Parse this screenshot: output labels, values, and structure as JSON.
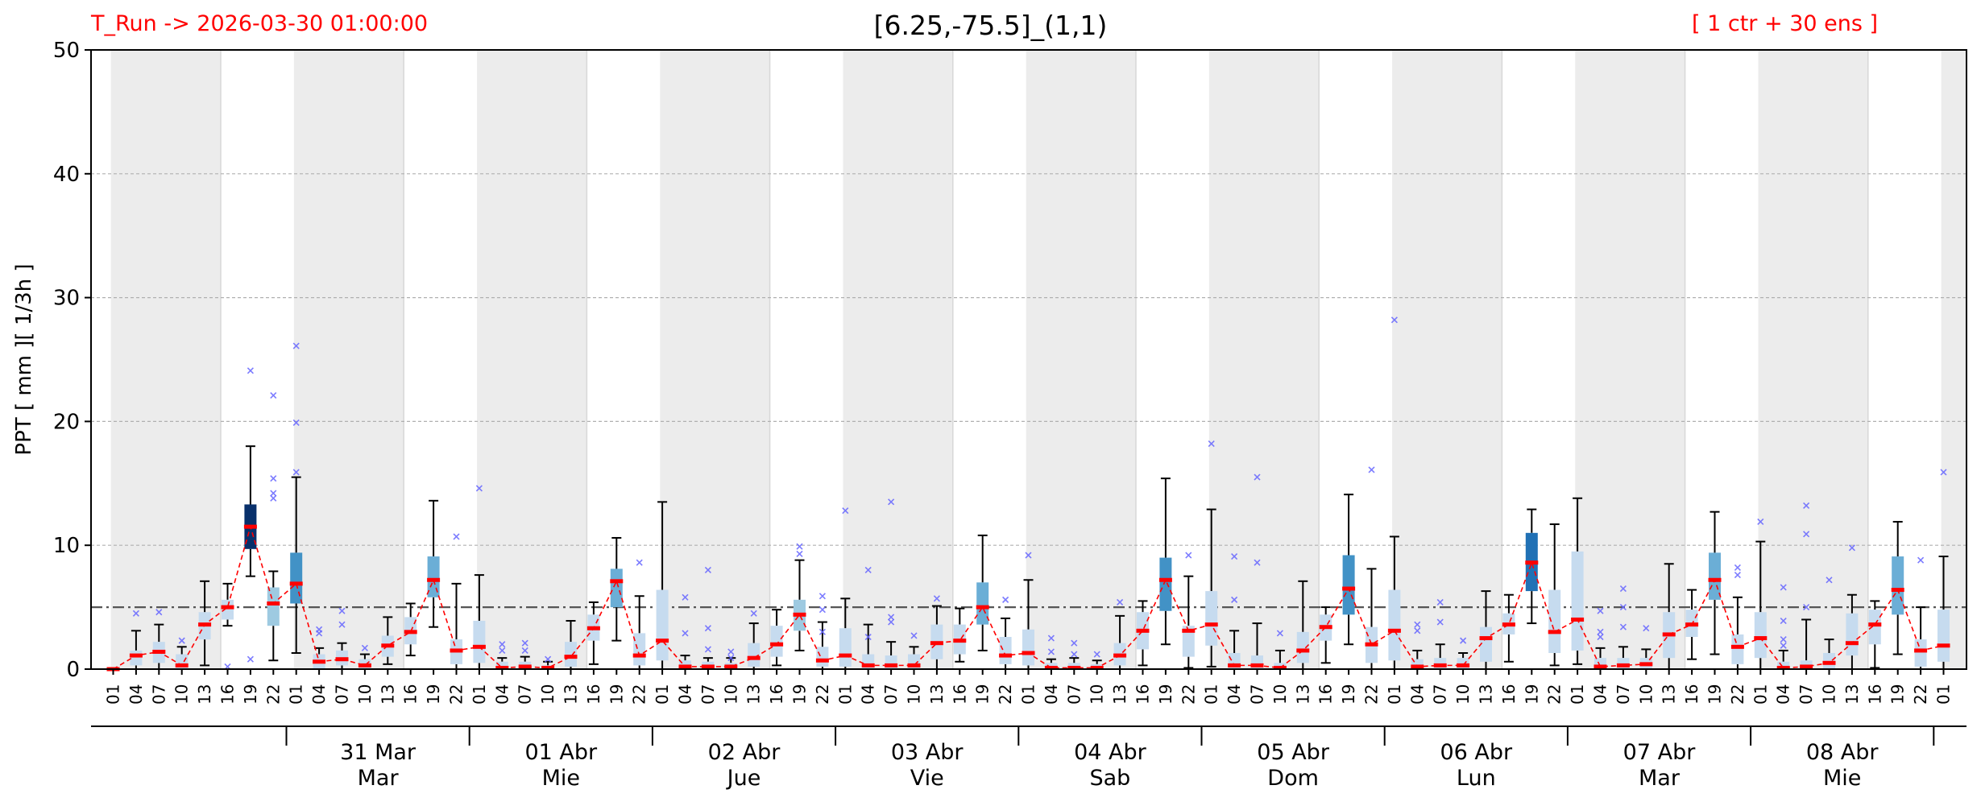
{
  "header": {
    "title": "[6.25,-75.5]_(1,1)",
    "run_label": "T_Run -> 2026-03-30  01:00:00",
    "ensemble_label": "[ 1 ctr + 30 ens ]"
  },
  "colors": {
    "median": "#ff0000",
    "mean_line": "#ff0000",
    "whisker": "#000000",
    "outlier": "#6666ff",
    "threshold_line": "#555555",
    "night_shade": "#ececec",
    "box_levels": [
      "#c6dbef",
      "#9ecae1",
      "#6baed6",
      "#4292c6",
      "#2171b5",
      "#08306b"
    ]
  },
  "chart_data": {
    "type": "box",
    "ylabel": "PPT  [ mm ][ 1/3h ]",
    "ylim": [
      0,
      50
    ],
    "yticks": [
      0,
      10,
      20,
      30,
      40,
      50
    ],
    "threshold": 5,
    "grid": "horizontal-dashed",
    "hour_labels": [
      "01",
      "04",
      "07",
      "10",
      "13",
      "16",
      "19",
      "22"
    ],
    "day_labels": [
      {
        "date": "31 Mar",
        "weekday": "Mar"
      },
      {
        "date": "01 Abr",
        "weekday": "Mie"
      },
      {
        "date": "02 Abr",
        "weekday": "Jue"
      },
      {
        "date": "03 Abr",
        "weekday": "Vie"
      },
      {
        "date": "04 Abr",
        "weekday": "Sab"
      },
      {
        "date": "05 Abr",
        "weekday": "Dom"
      },
      {
        "date": "06 Abr",
        "weekday": "Lun"
      },
      {
        "date": "07 Abr",
        "weekday": "Mar"
      },
      {
        "date": "08 Abr",
        "weekday": "Mie"
      }
    ],
    "boxes": [
      {
        "q1": 0,
        "q3": 0,
        "lo": 0,
        "hi": 0,
        "med": 0,
        "c": 0,
        "o": []
      },
      {
        "q1": 0.3,
        "q3": 1.5,
        "lo": 0,
        "hi": 3.1,
        "med": 1.1,
        "c": 0,
        "o": [
          4.5
        ]
      },
      {
        "q1": 0.5,
        "q3": 2.2,
        "lo": 0,
        "hi": 3.6,
        "med": 1.4,
        "c": 0,
        "o": [
          4.6
        ]
      },
      {
        "q1": 0,
        "q3": 1.2,
        "lo": 0,
        "hi": 1.8,
        "med": 0.3,
        "c": 0,
        "o": [
          2.3
        ]
      },
      {
        "q1": 2.4,
        "q3": 4.6,
        "lo": 0.3,
        "hi": 7.1,
        "med": 3.6,
        "c": 0,
        "o": []
      },
      {
        "q1": 4,
        "q3": 5.6,
        "lo": 3.5,
        "hi": 6.9,
        "med": 5,
        "c": 0,
        "o": [
          0.2
        ]
      },
      {
        "q1": 9.7,
        "q3": 13.3,
        "lo": 7.5,
        "hi": 18,
        "med": 11.5,
        "c": 5,
        "o": [
          24.1,
          0.8
        ]
      },
      {
        "q1": 3.5,
        "q3": 6.6,
        "lo": 0.7,
        "hi": 7.9,
        "med": 5.3,
        "c": 1,
        "o": [
          14.2,
          15.4,
          22.1,
          13.8
        ]
      },
      {
        "q1": 5.3,
        "q3": 9.4,
        "lo": 1.3,
        "hi": 15.5,
        "med": 6.9,
        "c": 3,
        "o": [
          15.9,
          19.9,
          26.1
        ]
      },
      {
        "q1": 0,
        "q3": 1.2,
        "lo": 0,
        "hi": 1.7,
        "med": 0.6,
        "c": 0,
        "o": [
          2.9,
          3.2
        ]
      },
      {
        "q1": 0.3,
        "q3": 1.5,
        "lo": 0,
        "hi": 2.1,
        "med": 0.8,
        "c": 0,
        "o": [
          3.6,
          4.7
        ]
      },
      {
        "q1": 0,
        "q3": 0.8,
        "lo": 0,
        "hi": 1.2,
        "med": 0.3,
        "c": 0,
        "o": [
          1.7
        ]
      },
      {
        "q1": 1,
        "q3": 2.7,
        "lo": 0.4,
        "hi": 4.2,
        "med": 1.9,
        "c": 0,
        "o": []
      },
      {
        "q1": 2,
        "q3": 4.2,
        "lo": 1.1,
        "hi": 5.3,
        "med": 3,
        "c": 0,
        "o": []
      },
      {
        "q1": 5.8,
        "q3": 9.1,
        "lo": 3.4,
        "hi": 13.6,
        "med": 7.2,
        "c": 2,
        "o": []
      },
      {
        "q1": 0.4,
        "q3": 2.4,
        "lo": 0,
        "hi": 6.9,
        "med": 1.5,
        "c": 0,
        "o": [
          10.7
        ]
      },
      {
        "q1": 0.5,
        "q3": 3.9,
        "lo": 0,
        "hi": 7.6,
        "med": 1.8,
        "c": 0,
        "o": [
          14.6
        ]
      },
      {
        "q1": 0,
        "q3": 0.6,
        "lo": 0,
        "hi": 0.9,
        "med": 0.1,
        "c": 0,
        "o": [
          1.5,
          2
        ]
      },
      {
        "q1": 0,
        "q3": 0.6,
        "lo": 0,
        "hi": 1,
        "med": 0.2,
        "c": 0,
        "o": [
          1.5,
          2.1
        ]
      },
      {
        "q1": 0,
        "q3": 0.3,
        "lo": 0,
        "hi": 0.6,
        "med": 0.1,
        "c": 0,
        "o": [
          0.8
        ]
      },
      {
        "q1": 0.2,
        "q3": 2.2,
        "lo": 0,
        "hi": 3.9,
        "med": 1,
        "c": 0,
        "o": []
      },
      {
        "q1": 2.3,
        "q3": 4.4,
        "lo": 0.4,
        "hi": 5.4,
        "med": 3.3,
        "c": 0,
        "o": []
      },
      {
        "q1": 5,
        "q3": 8.1,
        "lo": 2.3,
        "hi": 10.6,
        "med": 7.1,
        "c": 2,
        "o": []
      },
      {
        "q1": 0.3,
        "q3": 2.9,
        "lo": 0,
        "hi": 5.9,
        "med": 1.1,
        "c": 0,
        "o": [
          8.6
        ]
      },
      {
        "q1": 0.7,
        "q3": 6.4,
        "lo": 0,
        "hi": 13.5,
        "med": 2.3,
        "c": 0,
        "o": []
      },
      {
        "q1": 0,
        "q3": 0.7,
        "lo": 0,
        "hi": 1.1,
        "med": 0.2,
        "c": 0,
        "o": [
          2.9,
          5.8
        ]
      },
      {
        "q1": 0,
        "q3": 0.6,
        "lo": 0,
        "hi": 0.9,
        "med": 0.2,
        "c": 0,
        "o": [
          1.6,
          3.3,
          8
        ]
      },
      {
        "q1": 0,
        "q3": 0.5,
        "lo": 0,
        "hi": 0.9,
        "med": 0.2,
        "c": 0,
        "o": [
          0.9,
          1.4
        ]
      },
      {
        "q1": 0.2,
        "q3": 2.1,
        "lo": 0,
        "hi": 3.7,
        "med": 0.9,
        "c": 0,
        "o": [
          4.5
        ]
      },
      {
        "q1": 1,
        "q3": 3.5,
        "lo": 0.3,
        "hi": 4.8,
        "med": 2,
        "c": 0,
        "o": []
      },
      {
        "q1": 3.1,
        "q3": 5.6,
        "lo": 1.5,
        "hi": 8.8,
        "med": 4.4,
        "c": 1,
        "o": [
          9.3,
          9.9
        ]
      },
      {
        "q1": 0.2,
        "q3": 1.8,
        "lo": 0,
        "hi": 3.8,
        "med": 0.7,
        "c": 0,
        "o": [
          4.8,
          5.9,
          3
        ]
      },
      {
        "q1": 0.2,
        "q3": 3.3,
        "lo": 0,
        "hi": 5.7,
        "med": 1.1,
        "c": 0,
        "o": [
          12.8
        ]
      },
      {
        "q1": 0,
        "q3": 1.2,
        "lo": 0,
        "hi": 3.6,
        "med": 0.3,
        "c": 0,
        "o": [
          2.6,
          8
        ]
      },
      {
        "q1": 0,
        "q3": 1.1,
        "lo": 0,
        "hi": 2.2,
        "med": 0.3,
        "c": 0,
        "o": [
          3.8,
          4.2,
          13.5
        ]
      },
      {
        "q1": 0,
        "q3": 1.2,
        "lo": 0,
        "hi": 1.8,
        "med": 0.3,
        "c": 0,
        "o": [
          2.7
        ]
      },
      {
        "q1": 0.8,
        "q3": 3.6,
        "lo": 0,
        "hi": 5.1,
        "med": 2.1,
        "c": 0,
        "o": [
          5.7
        ]
      },
      {
        "q1": 1.2,
        "q3": 3.6,
        "lo": 0.6,
        "hi": 4.9,
        "med": 2.3,
        "c": 0,
        "o": []
      },
      {
        "q1": 3.6,
        "q3": 7,
        "lo": 1.5,
        "hi": 10.8,
        "med": 5,
        "c": 2,
        "o": []
      },
      {
        "q1": 0.4,
        "q3": 2.6,
        "lo": 0,
        "hi": 4.1,
        "med": 1.1,
        "c": 0,
        "o": [
          5.6
        ]
      },
      {
        "q1": 0.3,
        "q3": 3.2,
        "lo": 0,
        "hi": 7.2,
        "med": 1.3,
        "c": 0,
        "o": [
          9.2
        ]
      },
      {
        "q1": 0,
        "q3": 0.5,
        "lo": 0,
        "hi": 0.8,
        "med": 0.1,
        "c": 0,
        "o": [
          1.4,
          2.5
        ]
      },
      {
        "q1": 0,
        "q3": 0.5,
        "lo": 0,
        "hi": 0.9,
        "med": 0.1,
        "c": 0,
        "o": [
          1.2,
          2.1
        ]
      },
      {
        "q1": 0,
        "q3": 0.4,
        "lo": 0,
        "hi": 0.7,
        "med": 0.1,
        "c": 0,
        "o": [
          1.2
        ]
      },
      {
        "q1": 0.3,
        "q3": 2.1,
        "lo": 0,
        "hi": 4.3,
        "med": 1.1,
        "c": 0,
        "o": [
          5.4
        ]
      },
      {
        "q1": 1.6,
        "q3": 4.6,
        "lo": 0.3,
        "hi": 5.5,
        "med": 3.1,
        "c": 0,
        "o": []
      },
      {
        "q1": 4.7,
        "q3": 9,
        "lo": 2,
        "hi": 15.4,
        "med": 7.2,
        "c": 3,
        "o": []
      },
      {
        "q1": 1,
        "q3": 3.5,
        "lo": 0.1,
        "hi": 7.5,
        "med": 3.1,
        "c": 0,
        "o": [
          9.2
        ]
      },
      {
        "q1": 1.9,
        "q3": 6.3,
        "lo": 0.2,
        "hi": 12.9,
        "med": 3.6,
        "c": 0,
        "o": [
          18.2
        ]
      },
      {
        "q1": 0,
        "q3": 1.3,
        "lo": 0,
        "hi": 3.1,
        "med": 0.3,
        "c": 0,
        "o": [
          5.6,
          9.1
        ]
      },
      {
        "q1": 0,
        "q3": 1.1,
        "lo": 0,
        "hi": 3.7,
        "med": 0.3,
        "c": 0,
        "o": [
          8.6,
          15.5
        ]
      },
      {
        "q1": 0,
        "q3": 0.5,
        "lo": 0,
        "hi": 1.5,
        "med": 0.1,
        "c": 0,
        "o": [
          2.9
        ]
      },
      {
        "q1": 0.5,
        "q3": 3,
        "lo": 0,
        "hi": 7.1,
        "med": 1.5,
        "c": 0,
        "o": []
      },
      {
        "q1": 2.3,
        "q3": 4.4,
        "lo": 0.5,
        "hi": 5,
        "med": 3.4,
        "c": 0,
        "o": []
      },
      {
        "q1": 4.4,
        "q3": 9.2,
        "lo": 2,
        "hi": 14.1,
        "med": 6.5,
        "c": 3,
        "o": []
      },
      {
        "q1": 0.5,
        "q3": 3.4,
        "lo": 0,
        "hi": 8.1,
        "med": 2,
        "c": 0,
        "o": [
          16.1
        ]
      },
      {
        "q1": 0.7,
        "q3": 6.4,
        "lo": 0,
        "hi": 10.7,
        "med": 3.1,
        "c": 0,
        "o": [
          28.2
        ]
      },
      {
        "q1": 0,
        "q3": 0.8,
        "lo": 0,
        "hi": 1.5,
        "med": 0.2,
        "c": 0,
        "o": [
          3.1,
          3.6
        ]
      },
      {
        "q1": 0,
        "q3": 0.9,
        "lo": 0,
        "hi": 2,
        "med": 0.3,
        "c": 0,
        "o": [
          3.8,
          5.4
        ]
      },
      {
        "q1": 0,
        "q3": 0.9,
        "lo": 0,
        "hi": 1.3,
        "med": 0.3,
        "c": 0,
        "o": [
          2.3
        ]
      },
      {
        "q1": 0.6,
        "q3": 3.4,
        "lo": 0,
        "hi": 6.3,
        "med": 2.5,
        "c": 0,
        "o": []
      },
      {
        "q1": 2.8,
        "q3": 4.5,
        "lo": 0.6,
        "hi": 6,
        "med": 3.6,
        "c": 0,
        "o": []
      },
      {
        "q1": 6.3,
        "q3": 11,
        "lo": 3.7,
        "hi": 12.9,
        "med": 8.6,
        "c": 4,
        "o": []
      },
      {
        "q1": 1.3,
        "q3": 6.4,
        "lo": 0.3,
        "hi": 11.7,
        "med": 3,
        "c": 0,
        "o": []
      },
      {
        "q1": 1.5,
        "q3": 9.5,
        "lo": 0.4,
        "hi": 13.8,
        "med": 4,
        "c": 0,
        "o": []
      },
      {
        "q1": 0,
        "q3": 0.9,
        "lo": 0,
        "hi": 1.7,
        "med": 0.2,
        "c": 0,
        "o": [
          2.6,
          3,
          4.7
        ]
      },
      {
        "q1": 0,
        "q3": 0.9,
        "lo": 0,
        "hi": 1.8,
        "med": 0.3,
        "c": 0,
        "o": [
          3.4,
          5,
          6.5
        ]
      },
      {
        "q1": 0,
        "q3": 0.9,
        "lo": 0,
        "hi": 1.6,
        "med": 0.4,
        "c": 0,
        "o": [
          3.3
        ]
      },
      {
        "q1": 0.9,
        "q3": 4.6,
        "lo": 0,
        "hi": 8.5,
        "med": 2.8,
        "c": 0,
        "o": []
      },
      {
        "q1": 2.6,
        "q3": 4.8,
        "lo": 0.8,
        "hi": 6.4,
        "med": 3.6,
        "c": 0,
        "o": []
      },
      {
        "q1": 5.6,
        "q3": 9.4,
        "lo": 1.2,
        "hi": 12.7,
        "med": 7.2,
        "c": 2,
        "o": []
      },
      {
        "q1": 0.4,
        "q3": 2.8,
        "lo": 0,
        "hi": 5.8,
        "med": 1.8,
        "c": 0,
        "o": [
          7.6,
          8.2
        ]
      },
      {
        "q1": 0.9,
        "q3": 4.6,
        "lo": 0,
        "hi": 10.3,
        "med": 2.5,
        "c": 0,
        "o": [
          11.9
        ]
      },
      {
        "q1": 0,
        "q3": 0.6,
        "lo": 0,
        "hi": 1.5,
        "med": 0.1,
        "c": 0,
        "o": [
          1.9,
          2.4,
          3.9,
          6.6
        ]
      },
      {
        "q1": 0,
        "q3": 0.7,
        "lo": 0,
        "hi": 4,
        "med": 0.2,
        "c": 0,
        "o": [
          5,
          10.9,
          13.2
        ]
      },
      {
        "q1": 0,
        "q3": 1.3,
        "lo": 0,
        "hi": 2.4,
        "med": 0.5,
        "c": 0,
        "o": [
          7.2
        ]
      },
      {
        "q1": 1.1,
        "q3": 4.5,
        "lo": 0,
        "hi": 6,
        "med": 2.1,
        "c": 0,
        "o": [
          9.8
        ]
      },
      {
        "q1": 2,
        "q3": 4.8,
        "lo": 0.1,
        "hi": 5.5,
        "med": 3.6,
        "c": 0,
        "o": []
      },
      {
        "q1": 4.4,
        "q3": 9.1,
        "lo": 1.2,
        "hi": 11.9,
        "med": 6.4,
        "c": 2,
        "o": []
      },
      {
        "q1": 0.2,
        "q3": 2.4,
        "lo": 0,
        "hi": 5,
        "med": 1.5,
        "c": 0,
        "o": [
          8.8
        ]
      },
      {
        "q1": 0.6,
        "q3": 4.8,
        "lo": 0,
        "hi": 9.1,
        "med": 1.9,
        "c": 0,
        "o": [
          15.9
        ]
      }
    ]
  }
}
